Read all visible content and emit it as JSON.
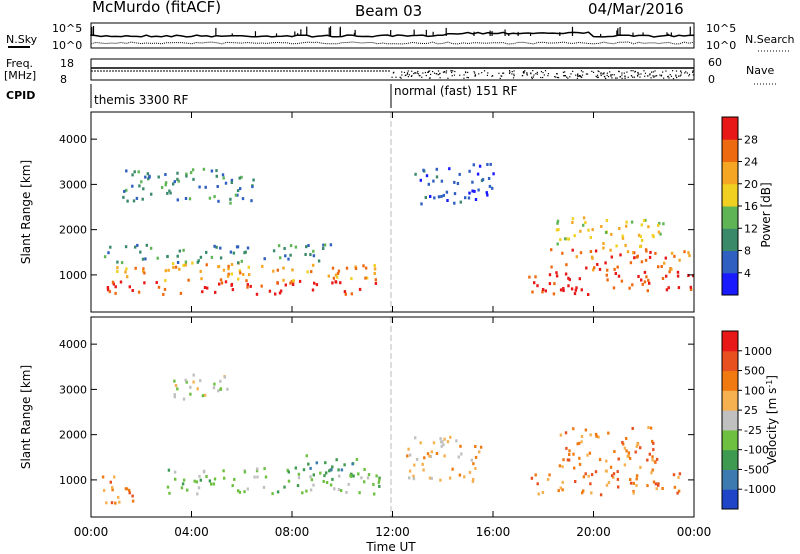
{
  "header": {
    "station": "McMurdo (fitACF)",
    "beam": "Beam 03",
    "date": "04/Mar/2016"
  },
  "noise_panel": {
    "left_label": "N.Sky",
    "right_label": "N.Search",
    "left_ticks": [
      "10^5",
      "10^0"
    ],
    "right_ticks": [
      "10^5",
      "10^0"
    ]
  },
  "freq_panel": {
    "left_label_1": "Freq.",
    "left_label_2": "[MHz]",
    "right_label": "Nave",
    "left_ticks": [
      "18",
      "8"
    ],
    "right_ticks": [
      "60",
      "0"
    ]
  },
  "cpid": {
    "label": "CPID",
    "modes": [
      "themis 3300 RF",
      "normal (fast) 151 RF"
    ]
  },
  "x_axis": {
    "label": "Time UT",
    "ticks": [
      "00:00",
      "04:00",
      "08:00",
      "12:00",
      "16:00",
      "20:00",
      "00:00"
    ]
  },
  "chart_data": [
    {
      "type": "heatmap",
      "title": "",
      "xlabel": "Time UT",
      "ylabel": "Slant Range [km]",
      "xlim": [
        0,
        24
      ],
      "ylim": [
        180,
        4600
      ],
      "y_ticks": [
        1000,
        2000,
        3000,
        4000
      ],
      "colorbar": {
        "label": "Power [dB]",
        "ticks": [
          "4",
          "8",
          "12",
          "16",
          "20",
          "24",
          "28"
        ],
        "colors": [
          "#1a1aff",
          "#2f5fc0",
          "#3a8a6a",
          "#5fb455",
          "#f0d020",
          "#f5a623",
          "#ee6a10",
          "#e81818"
        ]
      },
      "regions": [
        {
          "t": [
            0.6,
            11.7
          ],
          "r": [
            600,
            900
          ],
          "level": 7
        },
        {
          "t": [
            1.0,
            11.5
          ],
          "r": [
            900,
            1300
          ],
          "level": 5
        },
        {
          "t": [
            0.5,
            9.5
          ],
          "r": [
            1300,
            1700
          ],
          "level": 2
        },
        {
          "t": [
            17.3,
            24.0
          ],
          "r": [
            600,
            1100
          ],
          "level": 7
        },
        {
          "t": [
            17.8,
            23.8
          ],
          "r": [
            1100,
            1600
          ],
          "level": 6
        },
        {
          "t": [
            18.5,
            22.8
          ],
          "r": [
            1600,
            2300
          ],
          "level": 4
        },
        {
          "t": [
            1.2,
            6.5
          ],
          "r": [
            2600,
            3400
          ],
          "level": 2
        },
        {
          "t": [
            12.8,
            16.0
          ],
          "r": [
            2600,
            3500
          ],
          "level": 1
        }
      ]
    },
    {
      "type": "heatmap",
      "title": "",
      "xlabel": "Time UT",
      "ylabel": "Slant Range [km]",
      "xlim": [
        0,
        24
      ],
      "ylim": [
        180,
        4600
      ],
      "y_ticks": [
        1000,
        2000,
        3000,
        4000
      ],
      "colorbar": {
        "label": "Velocity [m s^-1]",
        "ticks": [
          "1000",
          "500",
          "100",
          "25",
          "-25",
          "-100",
          "-500",
          "-1000"
        ],
        "colors": [
          "#2044c8",
          "#3c7ab0",
          "#3e9a50",
          "#6ec040",
          "#c0c0c0",
          "#f5b050",
          "#f07a10",
          "#e85020",
          "#e81818"
        ]
      },
      "regions": [
        {
          "t": [
            0.3,
            2.0
          ],
          "r": [
            500,
            1100
          ],
          "level": 6
        },
        {
          "t": [
            3.0,
            11.5
          ],
          "r": [
            700,
            1300
          ],
          "level": 3
        },
        {
          "t": [
            8.5,
            11.0
          ],
          "r": [
            1100,
            1600
          ],
          "level": 2
        },
        {
          "t": [
            17.5,
            23.5
          ],
          "r": [
            700,
            1200
          ],
          "level": 6
        },
        {
          "t": [
            18.5,
            22.5
          ],
          "r": [
            1200,
            2200
          ],
          "level": 6
        },
        {
          "t": [
            3.0,
            5.5
          ],
          "r": [
            2800,
            3400
          ],
          "level": 4
        },
        {
          "t": [
            12.5,
            15.5
          ],
          "r": [
            1000,
            2000
          ],
          "level": 5
        }
      ]
    }
  ]
}
